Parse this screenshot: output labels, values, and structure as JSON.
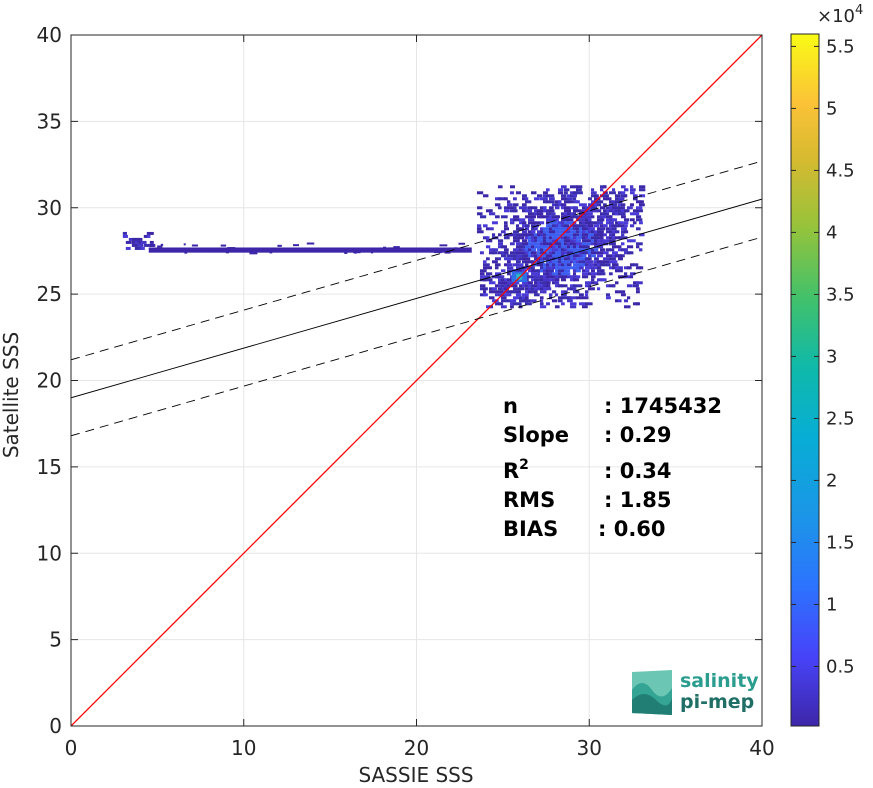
{
  "chart_data": {
    "type": "heatmap",
    "title": "",
    "xlabel": "SASSIE SSS",
    "ylabel": "Satellite SSS",
    "xlim": [
      0,
      40
    ],
    "ylim": [
      0,
      40
    ],
    "xticks": [
      "0",
      "10",
      "20",
      "30",
      "40"
    ],
    "yticks": [
      "0",
      "5",
      "10",
      "15",
      "20",
      "25",
      "30",
      "35",
      "40"
    ],
    "grid": true,
    "colorbar": {
      "multiplier_base": "×10",
      "multiplier_exp": "4",
      "ticks": [
        {
          "label": "0.5",
          "value": 0.5
        },
        {
          "label": "1",
          "value": 1
        },
        {
          "label": "1.5",
          "value": 1.5
        },
        {
          "label": "2",
          "value": 2
        },
        {
          "label": "2.5",
          "value": 2.5
        },
        {
          "label": "3",
          "value": 3
        },
        {
          "label": "3.5",
          "value": 3.5
        },
        {
          "label": "4",
          "value": 4
        },
        {
          "label": "4.5",
          "value": 4.5
        },
        {
          "label": "5",
          "value": 5
        },
        {
          "label": "5.5",
          "value": 5.5
        }
      ],
      "range": [
        0.02,
        5.6
      ],
      "colormap": "parula"
    },
    "lines": [
      {
        "kind": "one-to-one",
        "color": "#ff0000",
        "x": [
          0,
          40
        ],
        "y": [
          0,
          40
        ]
      },
      {
        "kind": "regression",
        "color": "#000000",
        "x": [
          0,
          40
        ],
        "y": [
          19.0,
          30.5
        ]
      },
      {
        "kind": "regression-upper",
        "color": "#000000",
        "dash": true,
        "x": [
          0,
          40
        ],
        "y": [
          21.2,
          32.7
        ]
      },
      {
        "kind": "regression-lower",
        "color": "#000000",
        "dash": true,
        "x": [
          0,
          40
        ],
        "y": [
          16.8,
          28.3
        ]
      }
    ],
    "density_regions": [
      {
        "x": [
          3.0,
          4.6
        ],
        "y": [
          27.6,
          28.6
        ],
        "density": "low"
      },
      {
        "x": [
          4.5,
          23.2
        ],
        "y": [
          27.4,
          27.7
        ],
        "density": "low"
      },
      {
        "x": [
          23.5,
          33.0
        ],
        "y": [
          24.2,
          31.3
        ],
        "density": "low-to-medium"
      },
      {
        "x": [
          25.5,
          26.4
        ],
        "y": [
          25.7,
          26.3
        ],
        "density": "peak"
      }
    ],
    "stats": [
      {
        "label": "n",
        "value": ": 1745432"
      },
      {
        "label": "Slope",
        "value": ": 0.29"
      },
      {
        "label": "R",
        "sup": "2",
        "value": ": 0.34"
      },
      {
        "label": "RMS",
        "value": ": 1.85"
      },
      {
        "label": "BIAS",
        "value": ": 0.60"
      }
    ]
  },
  "logo": {
    "line1": "salinity",
    "line2": "pi-mep",
    "color": "#2a9d8f"
  },
  "colors": {
    "one_to_one": "#ff0000",
    "regression": "#000000",
    "grid": "#e6e6e6",
    "axis": "#262626"
  }
}
